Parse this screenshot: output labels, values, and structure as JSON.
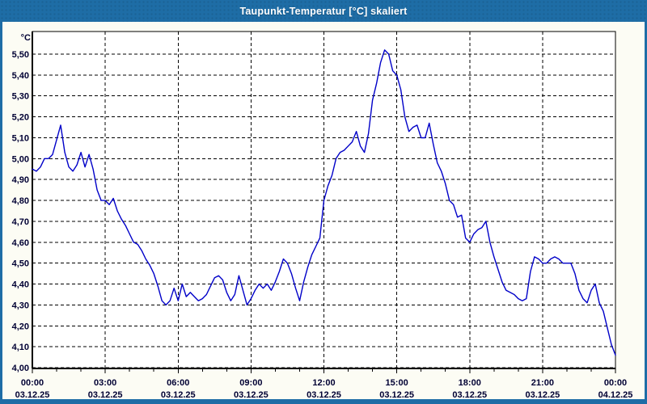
{
  "window": {
    "title": "Taupunkt-Temperatur [°C] skaliert"
  },
  "colors": {
    "titlebar": "#1E6DA6",
    "window_bg": "#FCFCF4",
    "plot_bg": "#FFFFFF",
    "frame": "#000000",
    "grid": "#000000",
    "label": "#000033",
    "line": "#0000C8"
  },
  "chart_data": {
    "type": "line",
    "title": "Taupunkt-Temperatur [°C] skaliert",
    "unit_label": "°C",
    "grid": "dashed",
    "legend": "none",
    "ylim": [
      4.0,
      5.5
    ],
    "ytick_step": 0.1,
    "yticks": [
      {
        "value": 5.5,
        "label": "5,50"
      },
      {
        "value": 5.4,
        "label": "5,40"
      },
      {
        "value": 5.3,
        "label": "5,30"
      },
      {
        "value": 5.2,
        "label": "5,20"
      },
      {
        "value": 5.1,
        "label": "5,10"
      },
      {
        "value": 5.0,
        "label": "5,00"
      },
      {
        "value": 4.9,
        "label": "4,90"
      },
      {
        "value": 4.8,
        "label": "4,80"
      },
      {
        "value": 4.7,
        "label": "4,70"
      },
      {
        "value": 4.6,
        "label": "4,60"
      },
      {
        "value": 4.5,
        "label": "4,50"
      },
      {
        "value": 4.4,
        "label": "4,40"
      },
      {
        "value": 4.3,
        "label": "4,30"
      },
      {
        "value": 4.2,
        "label": "4,20"
      },
      {
        "value": 4.1,
        "label": "4,10"
      },
      {
        "value": 4.0,
        "label": "4,00"
      }
    ],
    "xlim_hours": [
      0,
      24
    ],
    "xticks": [
      {
        "hour": 0,
        "time": "00:00",
        "date": "03.12.25"
      },
      {
        "hour": 3,
        "time": "03:00",
        "date": "03.12.25"
      },
      {
        "hour": 6,
        "time": "06:00",
        "date": "03.12.25"
      },
      {
        "hour": 9,
        "time": "09:00",
        "date": "03.12.25"
      },
      {
        "hour": 12,
        "time": "12:00",
        "date": "03.12.25"
      },
      {
        "hour": 15,
        "time": "15:00",
        "date": "03.12.25"
      },
      {
        "hour": 18,
        "time": "18:00",
        "date": "03.12.25"
      },
      {
        "hour": 21,
        "time": "21:00",
        "date": "03.12.25"
      },
      {
        "hour": 24,
        "time": "00:00",
        "date": "04.12.25"
      }
    ],
    "minor_tick_every_hours": 1,
    "series": [
      {
        "name": "Taupunkt-Temperatur",
        "color": "#0000C8",
        "start": "03.12.25 00:00",
        "interval_minutes": 10,
        "values": [
          4.95,
          4.94,
          4.96,
          5.0,
          5.0,
          5.02,
          5.09,
          5.16,
          5.03,
          4.96,
          4.94,
          4.97,
          5.03,
          4.96,
          5.02,
          4.95,
          4.85,
          4.8,
          4.8,
          4.78,
          4.81,
          4.75,
          4.71,
          4.68,
          4.64,
          4.6,
          4.59,
          4.56,
          4.52,
          4.49,
          4.45,
          4.39,
          4.32,
          4.3,
          4.32,
          4.38,
          4.32,
          4.4,
          4.34,
          4.36,
          4.34,
          4.32,
          4.33,
          4.35,
          4.39,
          4.43,
          4.44,
          4.42,
          4.36,
          4.32,
          4.35,
          4.44,
          4.37,
          4.3,
          4.33,
          4.37,
          4.4,
          4.38,
          4.4,
          4.37,
          4.41,
          4.46,
          4.52,
          4.5,
          4.45,
          4.38,
          4.32,
          4.41,
          4.48,
          4.54,
          4.58,
          4.62,
          4.8,
          4.87,
          4.92,
          5.0,
          5.03,
          5.04,
          5.06,
          5.08,
          5.13,
          5.06,
          5.03,
          5.12,
          5.28,
          5.36,
          5.46,
          5.52,
          5.5,
          5.42,
          5.4,
          5.33,
          5.2,
          5.13,
          5.15,
          5.16,
          5.1,
          5.1,
          5.17,
          5.07,
          4.98,
          4.94,
          4.88,
          4.8,
          4.78,
          4.72,
          4.73,
          4.62,
          4.6,
          4.64,
          4.66,
          4.67,
          4.7,
          4.6,
          4.53,
          4.47,
          4.41,
          4.37,
          4.36,
          4.35,
          4.33,
          4.32,
          4.33,
          4.46,
          4.53,
          4.52,
          4.5,
          4.5,
          4.52,
          4.53,
          4.52,
          4.5,
          4.5,
          4.5,
          4.45,
          4.37,
          4.33,
          4.31,
          4.37,
          4.4,
          4.31,
          4.27,
          4.19,
          4.11,
          4.06
        ]
      }
    ]
  }
}
